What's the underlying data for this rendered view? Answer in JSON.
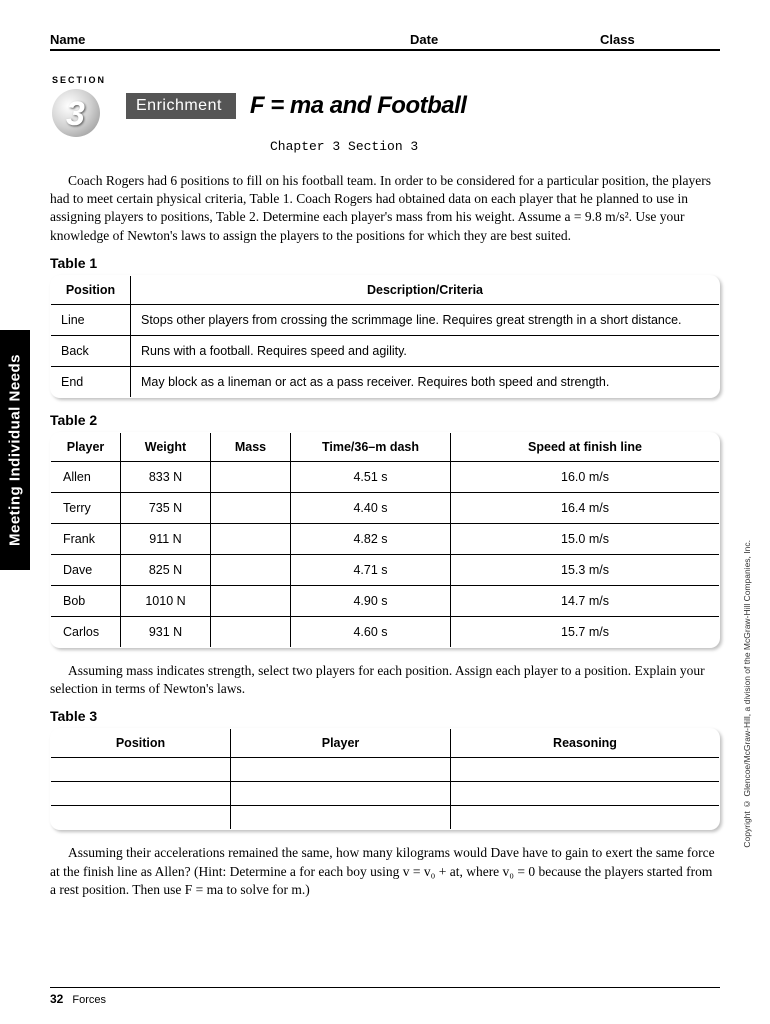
{
  "header": {
    "name": "Name",
    "date": "Date",
    "class": "Class"
  },
  "section": {
    "arc": "SECTION",
    "num": "3",
    "enrichment": "Enrichment"
  },
  "title": "F = ma and Football",
  "subtitle": "Chapter 3 Section 3",
  "intro": "Coach Rogers had 6 positions to fill on his football team. In order to be considered for a particular position, the players had to meet certain physical criteria, Table 1. Coach Rogers had obtained data on each player that he planned to use in assigning players to positions, Table 2. Determine each player's mass from his weight. Assume a = 9.8 m/s². Use your knowledge of Newton's laws to assign the players to the positions for which they are best suited.",
  "table1": {
    "label": "Table 1",
    "headers": [
      "Position",
      "Description/Criteria"
    ],
    "rows": [
      [
        "Line",
        "Stops other players from crossing the scrimmage line. Requires great strength in a short distance."
      ],
      [
        "Back",
        "Runs with a football. Requires speed and agility."
      ],
      [
        "End",
        "May block as a lineman or act as a pass receiver. Requires both speed and strength."
      ]
    ]
  },
  "table2": {
    "label": "Table 2",
    "headers": [
      "Player",
      "Weight",
      "Mass",
      "Time/36–m dash",
      "Speed at finish line"
    ],
    "rows": [
      [
        "Allen",
        "833 N",
        "",
        "4.51 s",
        "16.0 m/s"
      ],
      [
        "Terry",
        "735 N",
        "",
        "4.40 s",
        "16.4 m/s"
      ],
      [
        "Frank",
        "911 N",
        "",
        "4.82 s",
        "15.0 m/s"
      ],
      [
        "Dave",
        "825 N",
        "",
        "4.71 s",
        "15.3 m/s"
      ],
      [
        "Bob",
        "1010 N",
        "",
        "4.90 s",
        "14.7 m/s"
      ],
      [
        "Carlos",
        "931 N",
        "",
        "4.60 s",
        "15.7 m/s"
      ]
    ]
  },
  "midpara": "Assuming mass indicates strength, select two players for each position. Assign each player to a position. Explain your selection in terms of Newton's laws.",
  "table3": {
    "label": "Table 3",
    "headers": [
      "Position",
      "Player",
      "Reasoning"
    ]
  },
  "finalpara": "Assuming their accelerations remained the same, how many kilograms would Dave have to gain to exert the same force at the finish line as Allen? (Hint: Determine a for each boy using v = v₀ + at, where v₀ = 0 because the players started from a rest position. Then use F = ma to solve for m.)",
  "sidebar": "Meeting Individual Needs",
  "copyright": "Copyright © Glencoe/McGraw-Hill, a division of the McGraw-Hill Companies, Inc.",
  "footer": {
    "page": "32",
    "chapter": "Forces"
  }
}
